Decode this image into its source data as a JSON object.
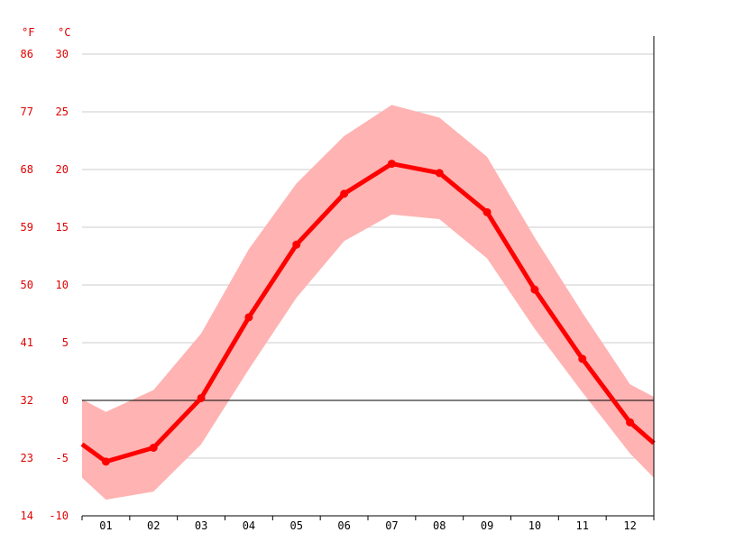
{
  "chart_data": {
    "type": "line",
    "title": "",
    "unit_labels": {
      "fahrenheit": "°F",
      "celsius": "°C"
    },
    "categories": [
      "01",
      "02",
      "03",
      "04",
      "05",
      "06",
      "07",
      "08",
      "09",
      "10",
      "11",
      "12"
    ],
    "y_ticks_c": [
      "30",
      "25",
      "20",
      "15",
      "10",
      "5",
      "0",
      "-5",
      "-10"
    ],
    "y_ticks_f": [
      "86",
      "77",
      "68",
      "59",
      "50",
      "41",
      "32",
      "23",
      "14"
    ],
    "ylim": [
      -10,
      30
    ],
    "x_data_range": [
      0.5,
      12.5
    ],
    "grid": true,
    "zero_line": true,
    "series": [
      {
        "role": "mean",
        "x": [
          0.5,
          1,
          2,
          3,
          4,
          5,
          6,
          7,
          8,
          9,
          10,
          11,
          12,
          12.5
        ],
        "values": [
          -3.8,
          -5.3,
          -4.1,
          0.2,
          7.2,
          13.5,
          17.9,
          20.5,
          19.7,
          16.3,
          9.6,
          3.6,
          -1.9,
          -3.7
        ]
      },
      {
        "role": "max",
        "x": [
          0.5,
          1,
          2,
          3,
          4,
          5,
          6,
          7,
          8,
          9,
          10,
          11,
          12,
          12.5
        ],
        "values": [
          0.1,
          -1.0,
          0.9,
          5.8,
          13.1,
          18.8,
          22.9,
          25.6,
          24.5,
          21.1,
          14.1,
          7.6,
          1.4,
          0.3
        ]
      },
      {
        "role": "min",
        "x": [
          0.5,
          1,
          2,
          3,
          4,
          5,
          6,
          7,
          8,
          9,
          10,
          11,
          12,
          12.5
        ],
        "values": [
          -6.7,
          -8.6,
          -7.9,
          -3.8,
          2.7,
          8.9,
          13.8,
          16.1,
          15.7,
          12.3,
          6.2,
          0.7,
          -4.6,
          -6.7
        ]
      }
    ],
    "colors": {
      "line": "#ff0000",
      "band": "#ffb3b3",
      "grid": "#cccccc",
      "axis_text": "#e00000",
      "month_text": "#000000"
    }
  }
}
